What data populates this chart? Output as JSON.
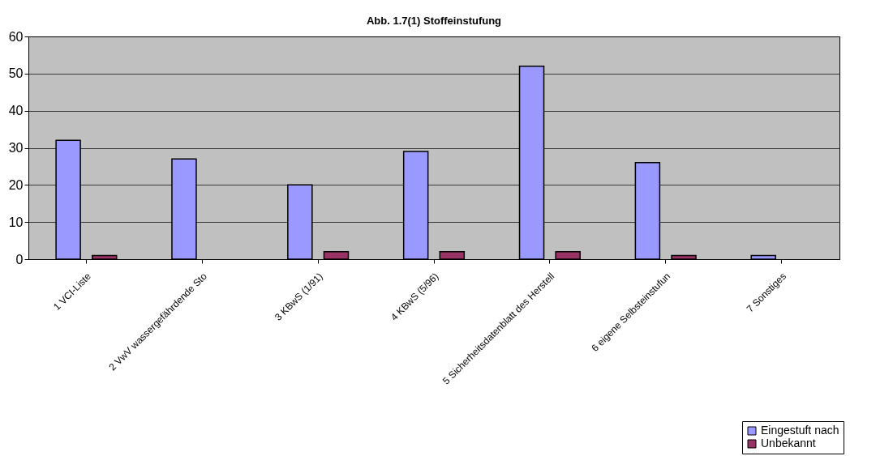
{
  "chart_data": {
    "type": "bar",
    "title": "Abb. 1.7(1) Stoffeinstufung",
    "categories": [
      "1 VCI-Liste",
      "2 VwV wassergefährdende Sto",
      "3 KBwS (1/91)",
      "4 KBwS (5/96)",
      "5 Sicherheitsdatenblatt des Herstell",
      "6 eigene Selbsteinstufun",
      "7 Sonstiges"
    ],
    "series": [
      {
        "name": "Eingestuft nach",
        "color": "#9999ff",
        "values": [
          32,
          27,
          20,
          29,
          52,
          26,
          1
        ]
      },
      {
        "name": "Unbekannt",
        "color": "#993366",
        "values": [
          1,
          null,
          2,
          2,
          2,
          1,
          null
        ]
      }
    ],
    "ylim": [
      0,
      60
    ],
    "yticks": [
      0,
      10,
      20,
      30,
      40,
      50,
      60
    ],
    "grid": "y",
    "legend": "bottom right"
  }
}
